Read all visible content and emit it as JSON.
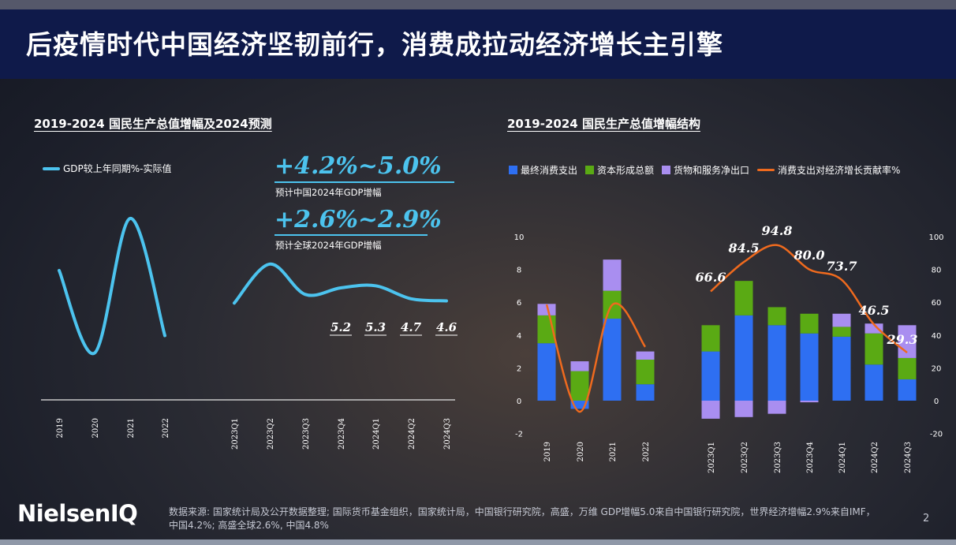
{
  "header": {
    "title": "后疫情时代中国经济坚韧前行，消费成拉动经济增长主引擎"
  },
  "left": {
    "section_title": "2019-2024 国民生产总值增幅及2024预测",
    "legend": "GDP较上年同期%-实际值",
    "forecasts": [
      {
        "value": "+4.2%~5.0%",
        "caption": "预计中国2024年GDP增幅"
      },
      {
        "value": "+2.6%~2.9%",
        "caption": "预计全球2024年GDP增幅"
      }
    ]
  },
  "right": {
    "section_title": "2019-2024 国民生产总值增幅结构",
    "legend": [
      "最终消费支出",
      "资本形成总额",
      "货物和服务净出口",
      "消费支出对经济增长贡献率%"
    ]
  },
  "colors": {
    "consumption": "#2e6ff2",
    "capital": "#5aaa14",
    "export": "#a98ef0",
    "contribution": "#ef6a1e",
    "gdp_line": "#4cc3ee"
  },
  "chart_data": [
    {
      "type": "line",
      "title": "2019-2024 国民生产总值增幅及2024预测",
      "series": [
        {
          "name": "GDP较上年同期%-实际值",
          "segments": [
            {
              "x": [
                "2019",
                "2020",
                "2021",
                "2022"
              ],
              "values": [
                6.0,
                2.2,
                8.4,
                3.0
              ]
            },
            {
              "x": [
                "2023Q1",
                "2023Q2",
                "2023Q3",
                "2023Q4",
                "2024Q1",
                "2024Q2",
                "2024Q3"
              ],
              "values": [
                4.5,
                6.3,
                4.9,
                5.2,
                5.3,
                4.7,
                4.6
              ]
            }
          ]
        }
      ],
      "categories": [
        "2019",
        "2020",
        "2021",
        "2022",
        "2023Q1",
        "2023Q2",
        "2023Q3",
        "2023Q4",
        "2024Q1",
        "2024Q2",
        "2024Q3"
      ],
      "data_labels": [
        {
          "x": "2023Q4",
          "text": "5.2"
        },
        {
          "x": "2024Q1",
          "text": "5.3"
        },
        {
          "x": "2024Q2",
          "text": "4.7"
        },
        {
          "x": "2024Q3",
          "text": "4.6"
        }
      ]
    },
    {
      "type": "bar",
      "stacked": true,
      "title": "2019-2024 国民生产总值增幅结构",
      "categories": [
        "2019",
        "2020",
        "2021",
        "2022",
        "2023Q1",
        "2023Q2",
        "2023Q3",
        "2023Q4",
        "2024Q1",
        "2024Q2",
        "2024Q3"
      ],
      "annual_categories": [
        "2019",
        "2020",
        "2021",
        "2022"
      ],
      "quarterly_categories": [
        "2023Q1",
        "2023Q2",
        "2023Q3",
        "2023Q4",
        "2024Q1",
        "2024Q2",
        "2024Q3"
      ],
      "left_axis": {
        "ticks": [
          -2,
          0,
          2,
          4,
          6,
          8,
          10
        ],
        "range": [
          -2,
          10
        ]
      },
      "right_axis": {
        "ticks": [
          -20,
          0,
          20,
          40,
          60,
          80,
          100
        ],
        "range": [
          -20,
          100
        ]
      },
      "series": [
        {
          "name": "最终消费支出",
          "values": [
            3.5,
            -0.5,
            5.0,
            1.0,
            3.0,
            5.2,
            4.6,
            4.1,
            3.9,
            2.2,
            1.3
          ]
        },
        {
          "name": "资本形成总额",
          "values": [
            1.7,
            1.8,
            1.7,
            1.5,
            1.6,
            2.1,
            1.1,
            1.2,
            0.6,
            1.9,
            1.3
          ]
        },
        {
          "name": "货物和服务净出口",
          "values": [
            0.7,
            0.6,
            1.9,
            0.5,
            -1.1,
            -1.0,
            -0.8,
            -0.1,
            0.8,
            0.6,
            2.0
          ]
        },
        {
          "name": "消费支出对经济增长贡献率%",
          "axis": "right",
          "values": [
            58.6,
            -6.8,
            58.3,
            32.8,
            66.6,
            84.5,
            94.8,
            80.0,
            73.7,
            46.5,
            29.3
          ]
        }
      ],
      "data_labels": [
        {
          "x": "2023Q1",
          "text": "66.6"
        },
        {
          "x": "2023Q2",
          "text": "84.5"
        },
        {
          "x": "2023Q3",
          "text": "94.8"
        },
        {
          "x": "2023Q4",
          "text": "80.0"
        },
        {
          "x": "2024Q1",
          "text": "73.7"
        },
        {
          "x": "2024Q2",
          "text": "46.5"
        },
        {
          "x": "2024Q3",
          "text": "29.3"
        }
      ]
    }
  ],
  "footer": {
    "source_line1": "数据来源: 国家统计局及公开数据整理; 国际货币基金组织，国家统计局，中国银行研究院，高盛，万维 GDP增幅5.0来自中国银行研究院，世界经济增幅2.9%来自IMF，",
    "source_line2": "中国4.2%; 高盛全球2.6%, 中国4.8%",
    "logo": "NielsenIQ",
    "page": "2"
  }
}
